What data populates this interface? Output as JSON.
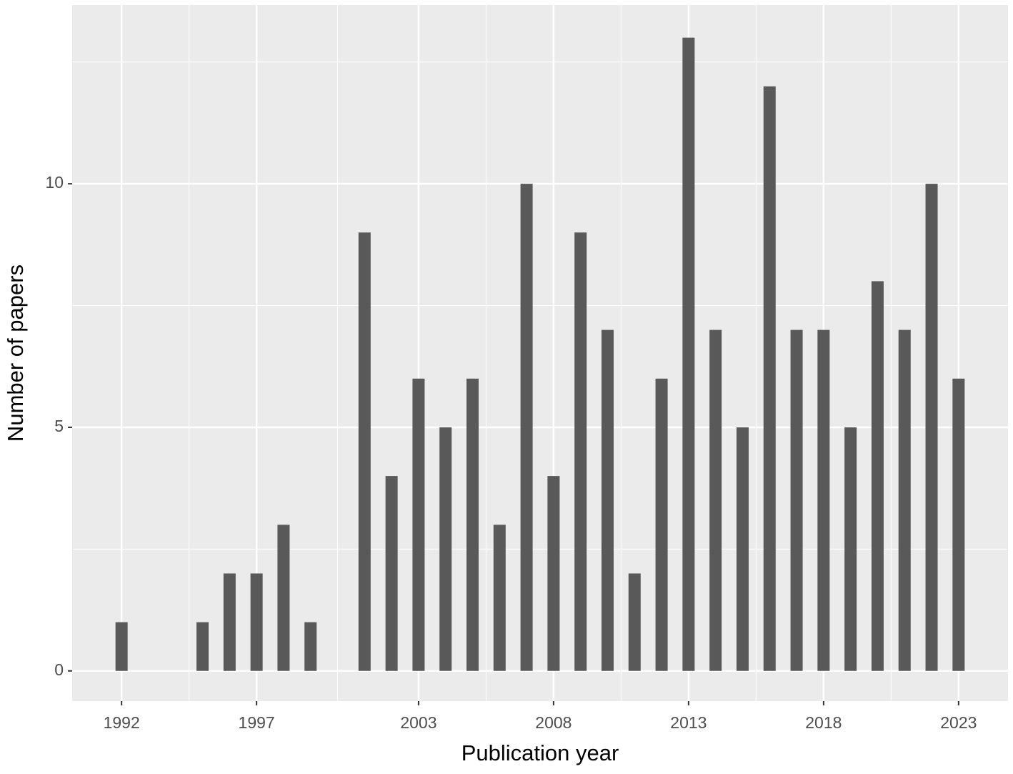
{
  "chart_data": {
    "type": "bar",
    "x_label": "Publication year",
    "y_label": "Number of papers",
    "x": [
      1992,
      1995,
      1996,
      1997,
      1998,
      1999,
      2001,
      2002,
      2003,
      2004,
      2005,
      2006,
      2007,
      2008,
      2009,
      2010,
      2011,
      2012,
      2013,
      2014,
      2015,
      2016,
      2017,
      2018,
      2019,
      2020,
      2021,
      2022,
      2023
    ],
    "values": [
      1,
      1,
      2,
      2,
      3,
      1,
      9,
      4,
      6,
      5,
      6,
      3,
      10,
      4,
      9,
      7,
      2,
      6,
      13,
      7,
      5,
      12,
      7,
      7,
      5,
      8,
      7,
      10,
      6
    ],
    "color": "#595959",
    "xlim": [
      1990.17,
      2024.83
    ],
    "ylim": [
      -0.62,
      13.67
    ],
    "xticks": [
      1992,
      1997,
      2003,
      2008,
      2013,
      2018,
      2023
    ],
    "yticks": [
      0,
      5,
      10
    ],
    "grid": true
  }
}
